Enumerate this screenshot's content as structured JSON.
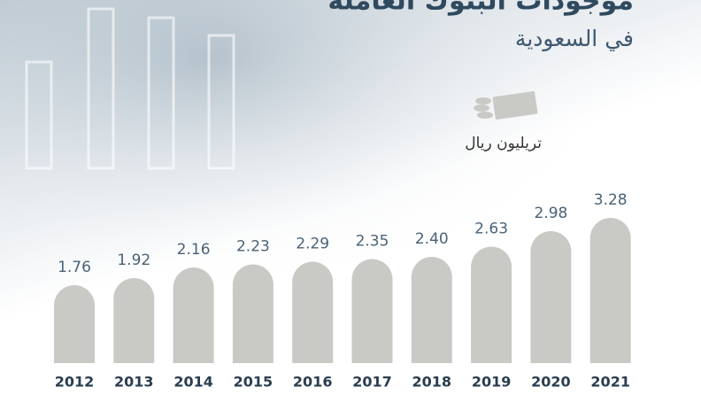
{
  "chart_data": {
    "type": "bar",
    "title": "موجودات البنوك العاملة",
    "subtitle": "في السعودية",
    "unit": "تريليون ريال",
    "categories": [
      "2012",
      "2013",
      "2014",
      "2015",
      "2016",
      "2017",
      "2018",
      "2019",
      "2020",
      "2021"
    ],
    "values": [
      1.76,
      1.92,
      2.16,
      2.23,
      2.29,
      2.35,
      2.4,
      2.63,
      2.98,
      3.28
    ],
    "value_labels": [
      "1.76",
      "1.92",
      "2.16",
      "2.23",
      "2.29",
      "2.35",
      "2.40",
      "2.63",
      "2.98",
      "3.28"
    ],
    "color": "#c9c9c6"
  }
}
